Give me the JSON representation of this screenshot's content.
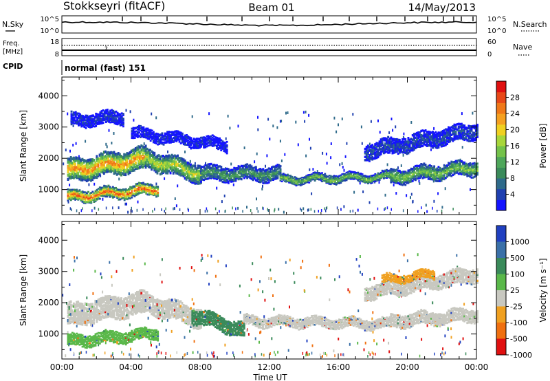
{
  "header": {
    "station": "Stokkseyri (fitACF)",
    "beam": "Beam 01",
    "date": "14/May/2013"
  },
  "strip_noise": {
    "left_label": "N.Sky",
    "right_label": "N.Search",
    "left_ticks": [
      "10^5",
      "10^0"
    ],
    "right_ticks": [
      "10^5",
      "10^0"
    ]
  },
  "strip_freq": {
    "left_label_line1": "Freq.",
    "left_label_line2": "[MHz]",
    "right_label": "Nave",
    "left_ticks": [
      "18",
      "8"
    ],
    "right_ticks": [
      "60",
      "0"
    ],
    "marker": "?"
  },
  "strip_cpid": {
    "label": "CPID",
    "mode_text": "normal (fast) 151"
  },
  "chart_data": [
    {
      "type": "heatmap",
      "title": "",
      "ylabel": "Slant Range [km]",
      "xlabel": "",
      "x_ticks": [
        "00:00",
        "04:00",
        "08:00",
        "12:00",
        "16:00",
        "20:00",
        "00:00"
      ],
      "y_ticks": [
        1000,
        2000,
        3000,
        4000
      ],
      "ylim": [
        200,
        4600
      ],
      "colorbar": {
        "label": "Power [dB]",
        "ticks": [
          "4",
          "8",
          "12",
          "16",
          "20",
          "24",
          "28"
        ],
        "colors": [
          "#1414ff",
          "#1f40b0",
          "#2e6a8a",
          "#3a8a5a",
          "#4ea65a",
          "#74c24a",
          "#a8d63a",
          "#f0d020",
          "#f5a020",
          "#f07818",
          "#e84818",
          "#e01010"
        ]
      },
      "bands": [
        {
          "x": [
            0.3,
            4.8
          ],
          "center": [
            1600,
            2000
          ],
          "width": 700,
          "level": 0.8
        },
        {
          "x": [
            4.8,
            8.0
          ],
          "center": [
            2000,
            1500
          ],
          "width": 600,
          "level": 0.6
        },
        {
          "x": [
            8.0,
            12.6
          ],
          "center": [
            1500,
            1500
          ],
          "width": 450,
          "level": 0.35
        },
        {
          "x": [
            12.6,
            19.0
          ],
          "center": [
            1300,
            1400
          ],
          "width": 250,
          "level": 0.5
        },
        {
          "x": [
            19.0,
            24.0
          ],
          "center": [
            1400,
            1700
          ],
          "width": 450,
          "level": 0.5
        },
        {
          "x": [
            0.3,
            5.5
          ],
          "center": [
            750,
            1000
          ],
          "width": 350,
          "level": 0.9
        },
        {
          "x": [
            0.5,
            3.5
          ],
          "center": [
            3200,
            3300
          ],
          "width": 400,
          "level": 0.1
        },
        {
          "x": [
            4.0,
            9.5
          ],
          "center": [
            2800,
            2400
          ],
          "width": 350,
          "level": 0.05
        },
        {
          "x": [
            17.5,
            24.0
          ],
          "center": [
            2200,
            2900
          ],
          "width": 500,
          "level": 0.15
        }
      ]
    },
    {
      "type": "heatmap",
      "title": "",
      "ylabel": "Slant Range [km]",
      "xlabel": "Time UT",
      "x_ticks": [
        "00:00",
        "04:00",
        "08:00",
        "12:00",
        "16:00",
        "20:00",
        "00:00"
      ],
      "y_ticks": [
        1000,
        2000,
        3000,
        4000
      ],
      "ylim": [
        200,
        4600
      ],
      "colorbar": {
        "label": "Velocity [m s⁻¹]",
        "ticks": [
          "1000",
          "500",
          "100",
          "25",
          "-25",
          "-100",
          "-500",
          "-1000"
        ],
        "colors": [
          "#2040c0",
          "#3a70a8",
          "#3a8a5a",
          "#5ab84a",
          "#c8c8c0",
          "#f0a020",
          "#f07010",
          "#e01010"
        ]
      },
      "bands": [
        {
          "x": [
            0.3,
            4.8
          ],
          "center": [
            1600,
            2000
          ],
          "width": 700,
          "color": "#c8c8c0"
        },
        {
          "x": [
            4.8,
            8.0
          ],
          "center": [
            2000,
            1500
          ],
          "width": 600,
          "color": "#c8c8c0"
        },
        {
          "x": [
            7.5,
            10.5
          ],
          "center": [
            1600,
            1100
          ],
          "width": 450,
          "color": "#3a8a5a"
        },
        {
          "x": [
            10.5,
            19.0
          ],
          "center": [
            1400,
            1300
          ],
          "width": 300,
          "color": "#c8c8c0"
        },
        {
          "x": [
            19.0,
            24.0
          ],
          "center": [
            1400,
            1600
          ],
          "width": 400,
          "color": "#c8c8c0"
        },
        {
          "x": [
            0.3,
            5.5
          ],
          "center": [
            750,
            1000
          ],
          "width": 350,
          "color": "#5ab84a"
        },
        {
          "x": [
            17.5,
            24.0
          ],
          "center": [
            2300,
            2900
          ],
          "width": 450,
          "color": "#c8c8c0"
        },
        {
          "x": [
            18.5,
            21.5
          ],
          "center": [
            2700,
            2900
          ],
          "width": 250,
          "color": "#f0a020"
        }
      ]
    }
  ]
}
